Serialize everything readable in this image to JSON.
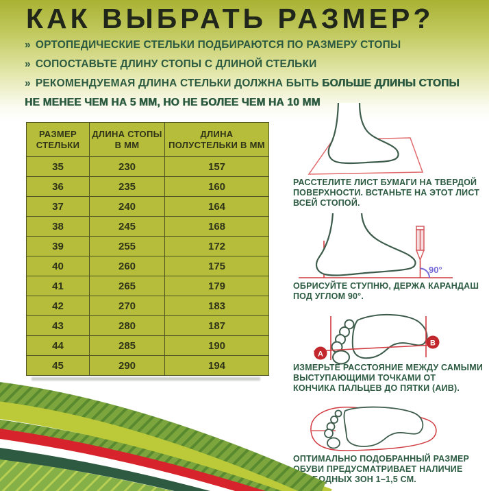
{
  "header": {
    "title": "КАК ВЫБРАТЬ РАЗМЕР?",
    "bullet_marker": "»",
    "bullets": [
      {
        "text": "ОРТОПЕДИЧЕСКИЕ СТЕЛЬКИ ПОДБИРАЮТСЯ ПО РАЗМЕРУ СТОПЫ",
        "bold": ""
      },
      {
        "text": "СОПОСТАВЬТЕ ДЛИНУ СТОПЫ С ДЛИНОЙ СТЕЛЬКИ",
        "bold": ""
      },
      {
        "text": "РЕКОМЕНДУЕМАЯ ДЛИНА СТЕЛЬКИ ДОЛЖНА БЫТЬ ",
        "bold": "БОЛЬШЕ ДЛИНЫ СТОПЫ НЕ МЕНЕЕ ЧЕМ НА 5 ММ, НО НЕ БОЛЕЕ ЧЕМ НА 10 ММ"
      }
    ]
  },
  "size_table": {
    "columns": [
      "РАЗМЕР СТЕЛЬКИ",
      "ДЛИНА СТОПЫ В ММ",
      "ДЛИНА ПОЛУСТЕЛЬКИ В ММ"
    ],
    "rows": [
      [
        "35",
        "230",
        "157"
      ],
      [
        "36",
        "235",
        "160"
      ],
      [
        "37",
        "240",
        "164"
      ],
      [
        "38",
        "245",
        "168"
      ],
      [
        "39",
        "255",
        "172"
      ],
      [
        "40",
        "260",
        "175"
      ],
      [
        "41",
        "265",
        "179"
      ],
      [
        "42",
        "270",
        "183"
      ],
      [
        "43",
        "280",
        "187"
      ],
      [
        "44",
        "285",
        "190"
      ],
      [
        "45",
        "290",
        "194"
      ]
    ]
  },
  "steps": [
    {
      "caption": "РАССТЕЛИТЕ ЛИСТ БУМАГИ НА ТВЕРДОЙ\nПОВЕРХНОСТИ. ВСТАНЬТЕ НА ЭТОТ ЛИСТ\nВСЕЙ СТОПОЙ.",
      "illustration": "foot-on-paper"
    },
    {
      "caption": "ОБРИСУЙТЕ СТУПНЮ, ДЕРЖА КАРАНДАШ\nПОД УГЛОМ 90°.",
      "illustration": "foot-with-pencil",
      "angle_label": "90°"
    },
    {
      "caption": "ИЗМЕРЬТЕ РАССТОЯНИЕ МЕЖДУ САМЫМИ\nВЫСТУПАЮЩИМИ ТОЧКАМИ ОТ\nКОНЧИКА ПАЛЬЦЕВ ДО ПЯТКИ (АИВ).",
      "illustration": "footprint-measure",
      "point_a": "А",
      "point_b": "В"
    },
    {
      "caption": "ОПТИМАЛЬНО ПОДОБРАННЫЙ РАЗМЕР\nОБУВИ ПРЕДУСМАТРИВАЕТ НАЛИЧИЕ\nСВОБОДНЫХ ЗОН 1–1,5 СМ.",
      "illustration": "footprint-in-insole"
    }
  ],
  "colors": {
    "accent_olive": "#b6bd3a",
    "header_gradient_top": "#a9b233",
    "dark_green_text": "#2b5a41",
    "title_text": "#20261a",
    "table_border": "#4d5323",
    "foot_outline": "#3d5c4b",
    "construction_red": "#d03a40",
    "paper_red": "#e0696b",
    "marker_red": "#c1272d",
    "angle_purple": "#7569d6",
    "band_red": "#d7232b",
    "band_dark_green": "#2d5a40",
    "band_light_green": "#bcc938"
  }
}
